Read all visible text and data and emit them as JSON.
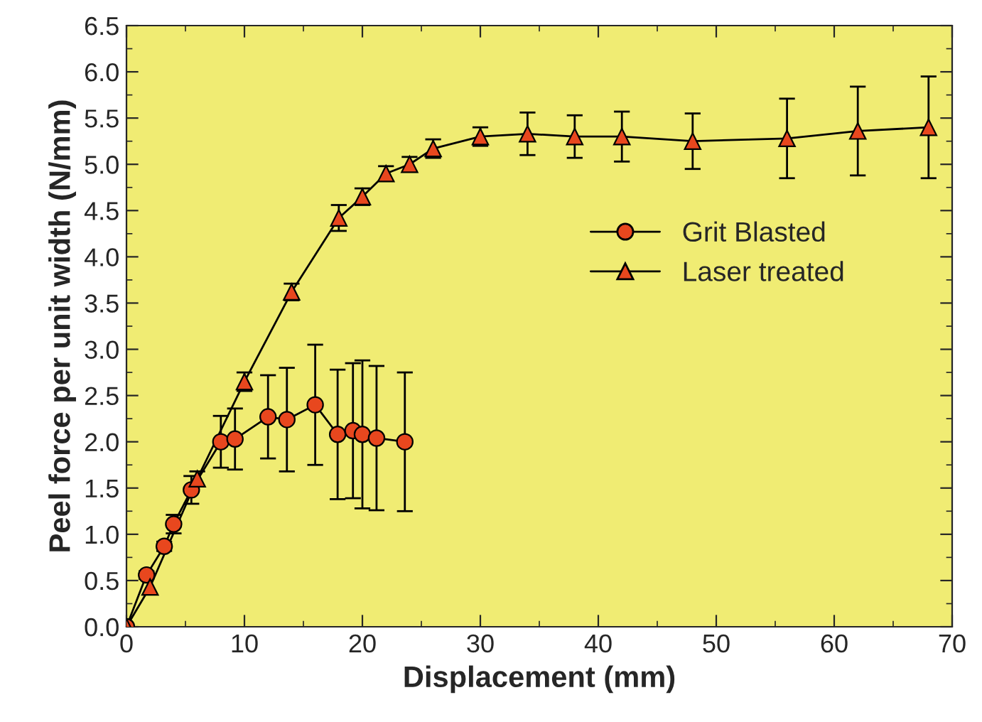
{
  "chart_data": {
    "type": "line",
    "xlabel": "Displacement (mm)",
    "ylabel": "Peel force per unit width (N/mm)",
    "xlim": [
      0,
      70
    ],
    "ylim": [
      0,
      6.5
    ],
    "xticks": [
      0,
      10,
      20,
      30,
      40,
      50,
      60,
      70
    ],
    "yticks": [
      {
        "value": 0,
        "label": "0.0"
      },
      {
        "value": 0.5,
        "label": "0.5"
      },
      {
        "value": 1,
        "label": "1.0"
      },
      {
        "value": 1.5,
        "label": "1.5"
      },
      {
        "value": 2,
        "label": "2.0"
      },
      {
        "value": 2.5,
        "label": "2.5"
      },
      {
        "value": 3,
        "label": "3.0"
      },
      {
        "value": 3.5,
        "label": "3.5"
      },
      {
        "value": 4,
        "label": "4.0"
      },
      {
        "value": 4.5,
        "label": "4.5"
      },
      {
        "value": 5,
        "label": "5.0"
      },
      {
        "value": 5.5,
        "label": "5.5"
      },
      {
        "value": 6,
        "label": "6.0"
      },
      {
        "value": 6.5,
        "label": "6.5"
      }
    ],
    "grid": false,
    "legend": "right",
    "series": [
      {
        "name": "Grit Blasted",
        "color": "#e8471e",
        "marker": "circle",
        "x": [
          0,
          1.7,
          3.2,
          4.0,
          5.5,
          8.0,
          9.2,
          12,
          13.6,
          16,
          17.9,
          19.2,
          20,
          21.2,
          23.6
        ],
        "values": [
          0,
          0.56,
          0.87,
          1.11,
          1.48,
          2.0,
          2.03,
          2.27,
          2.24,
          2.4,
          2.08,
          2.12,
          2.08,
          2.04,
          2.0
        ],
        "errors": [
          null,
          0.04,
          0.05,
          0.1,
          0.15,
          0.28,
          0.33,
          0.45,
          0.56,
          0.65,
          0.7,
          0.73,
          0.8,
          0.78,
          0.75
        ]
      },
      {
        "name": "Laser treated",
        "color": "#e8471e",
        "marker": "triangle",
        "x": [
          0,
          2,
          6,
          10,
          14,
          18,
          20,
          22,
          24,
          26,
          30,
          34,
          38,
          42,
          48,
          56,
          62,
          68
        ],
        "values": [
          0,
          0.43,
          1.6,
          2.65,
          3.62,
          4.42,
          4.65,
          4.9,
          5.0,
          5.17,
          5.3,
          5.33,
          5.3,
          5.3,
          5.25,
          5.28,
          5.36,
          5.4
        ],
        "errors": [
          null,
          null,
          0.08,
          0.1,
          0.09,
          0.14,
          0.09,
          0.08,
          0.08,
          0.1,
          0.1,
          0.23,
          0.23,
          0.27,
          0.3,
          0.43,
          0.48,
          0.55
        ]
      }
    ]
  }
}
